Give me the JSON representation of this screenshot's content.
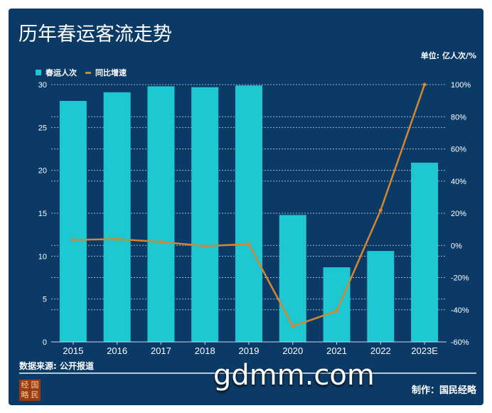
{
  "title": "历年春运客流走势",
  "unit": "单位: 亿人次/%",
  "source": "数据来源: 公开报道",
  "maker": "制作：国民经略",
  "logo_text": [
    "经",
    "国",
    "略",
    "民"
  ],
  "watermark": "gdmm.com",
  "colors": {
    "background": "#0b3a66",
    "bar": "#1ec8d2",
    "line": "#d4872f"
  },
  "chart_data": {
    "type": "bar+line",
    "title": "历年春运客流走势",
    "categories": [
      "2015",
      "2016",
      "2017",
      "2018",
      "2019",
      "2020",
      "2021",
      "2022",
      "2023E"
    ],
    "series": [
      {
        "name": "春运人次",
        "type": "bar",
        "axis": "left",
        "values": [
          28.1,
          29.1,
          29.8,
          29.7,
          29.9,
          14.8,
          8.7,
          10.6,
          20.9
        ]
      },
      {
        "name": "同比增速",
        "type": "line",
        "axis": "right",
        "values": [
          3.5,
          3.9,
          2.2,
          -0.4,
          0.8,
          -50.3,
          -40.7,
          21.8,
          100
        ]
      }
    ],
    "ylim_left": [
      0,
      30
    ],
    "yticks_left": [
      "0",
      "5",
      "10",
      "15",
      "20",
      "25",
      "30"
    ],
    "ylim_right": [
      -60,
      100
    ],
    "yticks_right": [
      "-60%",
      "-40%",
      "-20%",
      "0%",
      "20%",
      "40%",
      "60%",
      "80%",
      "100%"
    ],
    "legend": [
      "春运人次",
      "同比增速"
    ],
    "legend_position": "top-left",
    "grid": true
  }
}
